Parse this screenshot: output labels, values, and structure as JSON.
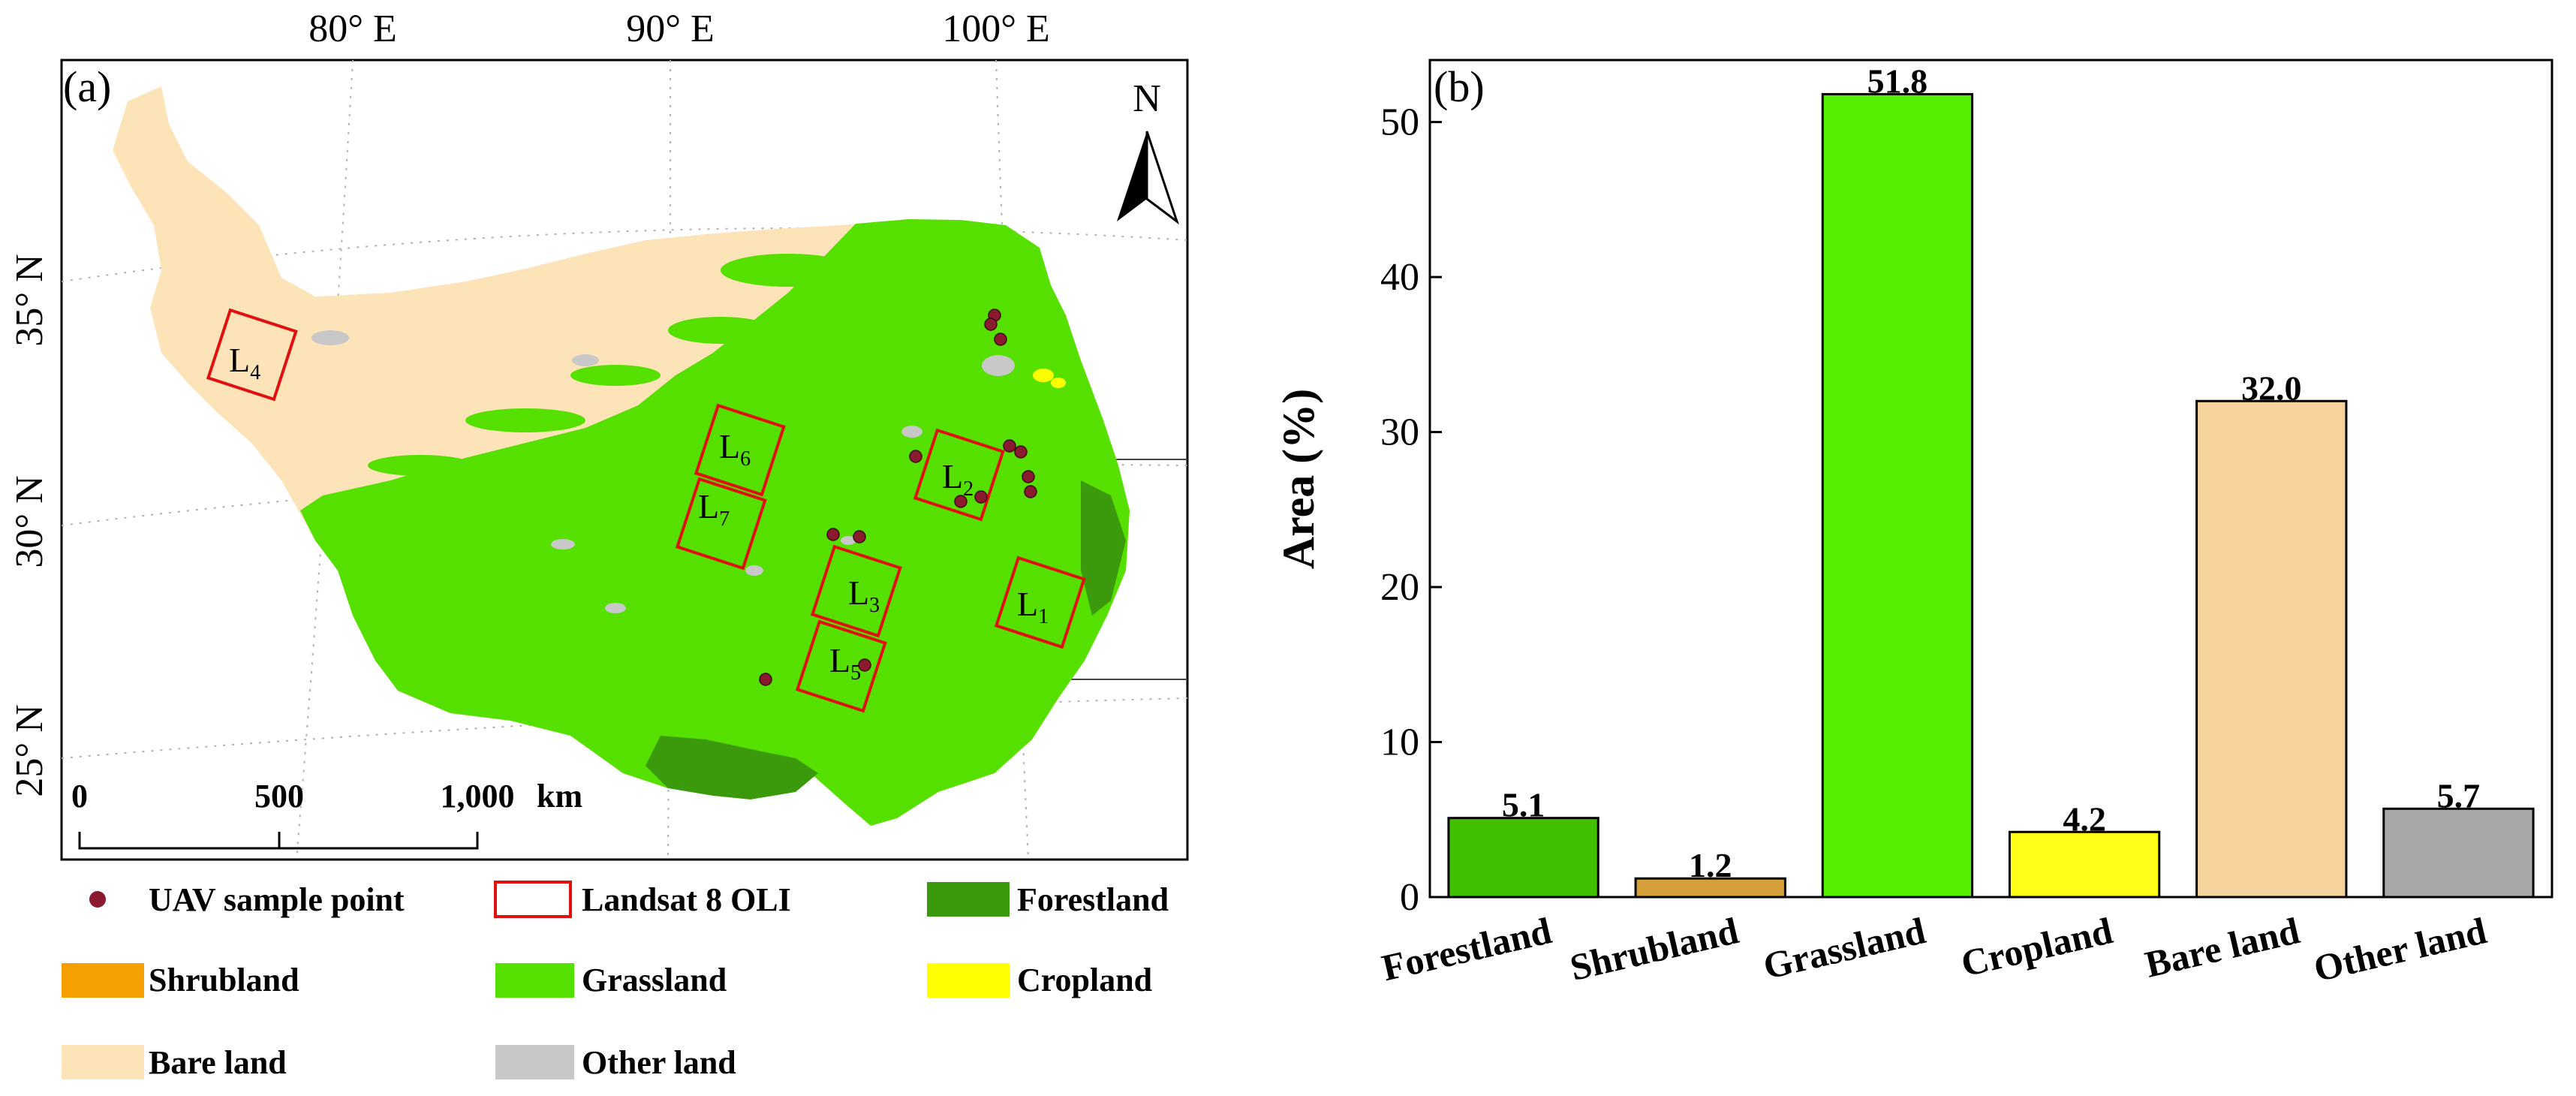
{
  "panel_a": {
    "label": "(a)",
    "lon_labels": [
      "80° E",
      "90° E",
      "100° E"
    ],
    "lat_labels": [
      "35° N",
      "30° N",
      "25° N"
    ],
    "north": "N",
    "scale_ticks": [
      "0",
      "500",
      "1,000"
    ],
    "scale_unit": "km",
    "scenes": [
      {
        "name": "L",
        "sub": "1"
      },
      {
        "name": "L",
        "sub": "2"
      },
      {
        "name": "L",
        "sub": "3"
      },
      {
        "name": "L",
        "sub": "4"
      },
      {
        "name": "L",
        "sub": "5"
      },
      {
        "name": "L",
        "sub": "6"
      },
      {
        "name": "L",
        "sub": "7"
      }
    ],
    "legend": [
      {
        "key": "uav",
        "label": "UAV sample point",
        "color": "#8b1a2e"
      },
      {
        "key": "landsat",
        "label": "Landsat 8 OLI",
        "color": "#e01010"
      },
      {
        "key": "forest",
        "label": "Forestland",
        "color": "#3a9a0c"
      },
      {
        "key": "shrub",
        "label": "Shrubland",
        "color": "#f5a000"
      },
      {
        "key": "grass",
        "label": "Grassland",
        "color": "#55e000"
      },
      {
        "key": "crop",
        "label": "Cropland",
        "color": "#ffff00"
      },
      {
        "key": "bare",
        "label": "Bare land",
        "color": "#fde4b8"
      },
      {
        "key": "other",
        "label": "Other land",
        "color": "#c8c8c8"
      }
    ]
  },
  "chart_data": {
    "type": "bar",
    "label": "(b)",
    "categories": [
      "Forestland",
      "Shrubland",
      "Grassland",
      "Cropland",
      "Bare land",
      "Other land"
    ],
    "values": [
      5.1,
      1.2,
      51.8,
      4.2,
      32.0,
      5.7
    ],
    "value_labels": [
      "5.1",
      "1.2",
      "51.8",
      "4.2",
      "32.0",
      "5.7"
    ],
    "colors": [
      "#40c000",
      "#d4a03a",
      "#55ee00",
      "#ffff1a",
      "#f6d39c",
      "#a8a8a8"
    ],
    "ylabel": "Area (%)",
    "xlabel": "",
    "ylim": [
      0,
      54
    ],
    "yticks": [
      0,
      10,
      20,
      30,
      40,
      50
    ],
    "ytick_labels": [
      "0",
      "10",
      "20",
      "30",
      "40",
      "50"
    ]
  }
}
